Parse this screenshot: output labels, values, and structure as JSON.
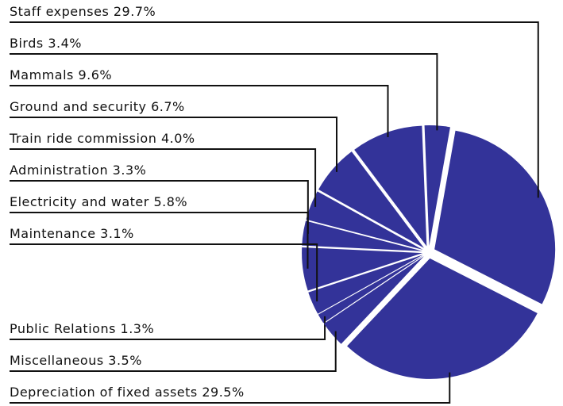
{
  "chart_data": {
    "type": "pie",
    "categories": [
      "Staff expenses",
      "Birds",
      "Mammals",
      "Ground and security",
      "Train ride commission",
      "Administration",
      "Electricity and water",
      "Maintenance",
      "Public Relations",
      "Miscellaneous",
      "Depreciation of fixed assets"
    ],
    "values": [
      29.7,
      3.4,
      9.6,
      6.7,
      4.0,
      3.3,
      5.8,
      3.1,
      1.3,
      3.5,
      29.5
    ],
    "value_labels": [
      "29.7%",
      "3.4%",
      "9.6%",
      "6.7%",
      "4.0%",
      "3.3%",
      "5.8%",
      "3.1%",
      "1.3%",
      "3.5%",
      "29.5%"
    ],
    "color": "#333399"
  }
}
